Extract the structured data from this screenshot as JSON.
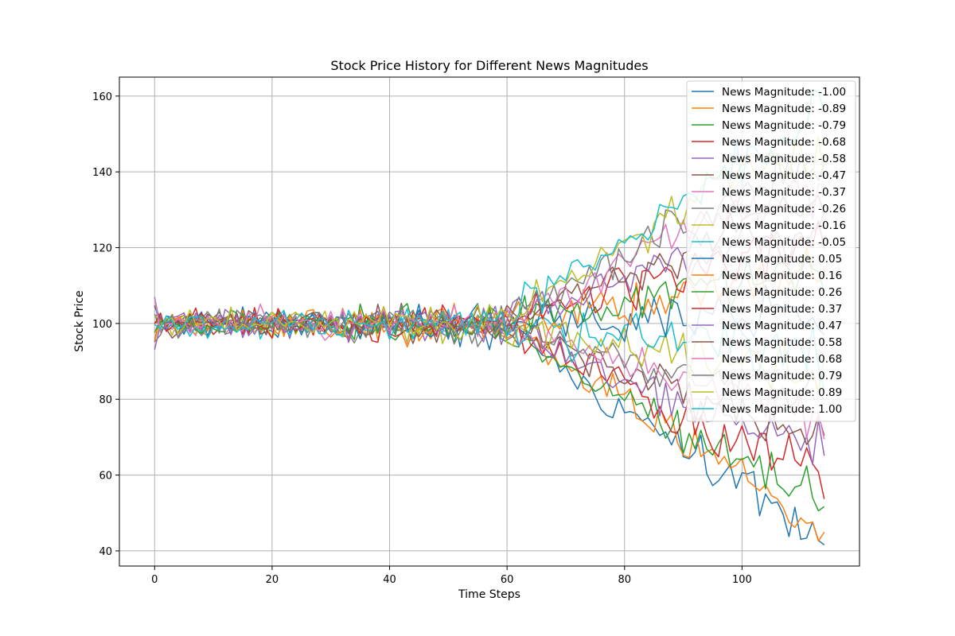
{
  "chart_data": {
    "type": "line",
    "title": "Stock Price History for Different News Magnitudes",
    "xlabel": "Time Steps",
    "ylabel": "Stock Price",
    "xlim": [
      -6,
      120
    ],
    "ylim": [
      36,
      165
    ],
    "xticks": [
      0,
      20,
      40,
      60,
      80,
      100
    ],
    "yticks": [
      40,
      60,
      80,
      100,
      120,
      140,
      160
    ],
    "grid": true,
    "legend_position": "top-right",
    "x_range": [
      0,
      114
    ],
    "series": [
      {
        "name": "News Magnitude: -1.00",
        "color": "#1f77b4",
        "anchors": [
          [
            0,
            100
          ],
          [
            58,
            99
          ],
          [
            65,
            93
          ],
          [
            75,
            82
          ],
          [
            85,
            72
          ],
          [
            95,
            63
          ],
          [
            105,
            54
          ],
          [
            110,
            48
          ],
          [
            114,
            46
          ]
        ]
      },
      {
        "name": "News Magnitude: -0.89",
        "color": "#ff7f0e",
        "anchors": [
          [
            0,
            100
          ],
          [
            58,
            99
          ],
          [
            65,
            94
          ],
          [
            75,
            84
          ],
          [
            85,
            74
          ],
          [
            95,
            64
          ],
          [
            105,
            55
          ],
          [
            110,
            50
          ],
          [
            114,
            44
          ]
        ]
      },
      {
        "name": "News Magnitude: -0.79",
        "color": "#2ca02c",
        "anchors": [
          [
            0,
            100
          ],
          [
            58,
            99
          ],
          [
            65,
            94
          ],
          [
            75,
            85
          ],
          [
            85,
            75
          ],
          [
            95,
            66
          ],
          [
            105,
            59
          ],
          [
            110,
            55
          ],
          [
            114,
            52
          ]
        ]
      },
      {
        "name": "News Magnitude: -0.68",
        "color": "#d62728",
        "anchors": [
          [
            0,
            100
          ],
          [
            58,
            99
          ],
          [
            65,
            95
          ],
          [
            75,
            87
          ],
          [
            85,
            79
          ],
          [
            95,
            71
          ],
          [
            105,
            66
          ],
          [
            110,
            63
          ],
          [
            114,
            62
          ]
        ]
      },
      {
        "name": "News Magnitude: -0.58",
        "color": "#9467bd",
        "anchors": [
          [
            0,
            100
          ],
          [
            58,
            99
          ],
          [
            65,
            96
          ],
          [
            75,
            89
          ],
          [
            85,
            82
          ],
          [
            95,
            76
          ],
          [
            105,
            72
          ],
          [
            110,
            70
          ],
          [
            114,
            68
          ]
        ]
      },
      {
        "name": "News Magnitude: -0.47",
        "color": "#8c564b",
        "anchors": [
          [
            0,
            100
          ],
          [
            58,
            99
          ],
          [
            65,
            96
          ],
          [
            75,
            90
          ],
          [
            85,
            84
          ],
          [
            95,
            78
          ],
          [
            105,
            74
          ],
          [
            110,
            72
          ],
          [
            114,
            68
          ]
        ]
      },
      {
        "name": "News Magnitude: -0.37",
        "color": "#e377c2",
        "anchors": [
          [
            0,
            100
          ],
          [
            58,
            99
          ],
          [
            65,
            97
          ],
          [
            75,
            92
          ],
          [
            85,
            87
          ],
          [
            95,
            82
          ],
          [
            105,
            79
          ],
          [
            110,
            77
          ],
          [
            114,
            75
          ]
        ]
      },
      {
        "name": "News Magnitude: -0.26",
        "color": "#7f7f7f",
        "anchors": [
          [
            0,
            100
          ],
          [
            58,
            99
          ],
          [
            65,
            97
          ],
          [
            75,
            93
          ],
          [
            85,
            89
          ],
          [
            95,
            86
          ],
          [
            105,
            83
          ],
          [
            110,
            81
          ],
          [
            114,
            80
          ]
        ]
      },
      {
        "name": "News Magnitude: -0.16",
        "color": "#bcbd22",
        "anchors": [
          [
            0,
            100
          ],
          [
            58,
            99
          ],
          [
            65,
            98
          ],
          [
            75,
            95
          ],
          [
            85,
            92
          ],
          [
            95,
            90
          ],
          [
            105,
            88
          ],
          [
            110,
            87
          ],
          [
            114,
            86
          ]
        ]
      },
      {
        "name": "News Magnitude: -0.05",
        "color": "#17becf",
        "anchors": [
          [
            0,
            100
          ],
          [
            58,
            99
          ],
          [
            65,
            98
          ],
          [
            75,
            97
          ],
          [
            85,
            96
          ],
          [
            95,
            95
          ],
          [
            105,
            94
          ],
          [
            110,
            93
          ],
          [
            114,
            92
          ]
        ]
      },
      {
        "name": "News Magnitude: 0.05",
        "color": "#1f77b4",
        "anchors": [
          [
            0,
            100
          ],
          [
            58,
            100
          ],
          [
            65,
            100
          ],
          [
            75,
            100
          ],
          [
            85,
            101
          ],
          [
            95,
            101
          ],
          [
            105,
            102
          ],
          [
            110,
            102
          ],
          [
            114,
            101
          ]
        ]
      },
      {
        "name": "News Magnitude: 0.16",
        "color": "#ff7f0e",
        "anchors": [
          [
            0,
            100
          ],
          [
            58,
            100
          ],
          [
            65,
            101
          ],
          [
            75,
            103
          ],
          [
            85,
            106
          ],
          [
            95,
            109
          ],
          [
            105,
            111
          ],
          [
            110,
            112
          ],
          [
            114,
            113
          ]
        ]
      },
      {
        "name": "News Magnitude: 0.26",
        "color": "#2ca02c",
        "anchors": [
          [
            0,
            100
          ],
          [
            58,
            100
          ],
          [
            65,
            102
          ],
          [
            75,
            105
          ],
          [
            85,
            108
          ],
          [
            95,
            111
          ],
          [
            105,
            113
          ],
          [
            110,
            114
          ],
          [
            114,
            115
          ]
        ]
      },
      {
        "name": "News Magnitude: 0.37",
        "color": "#d62728",
        "anchors": [
          [
            0,
            100
          ],
          [
            58,
            100
          ],
          [
            65,
            103
          ],
          [
            75,
            107
          ],
          [
            85,
            111
          ],
          [
            95,
            115
          ],
          [
            105,
            118
          ],
          [
            110,
            120
          ],
          [
            114,
            121
          ]
        ]
      },
      {
        "name": "News Magnitude: 0.47",
        "color": "#9467bd",
        "anchors": [
          [
            0,
            100
          ],
          [
            58,
            100
          ],
          [
            65,
            104
          ],
          [
            75,
            109
          ],
          [
            85,
            115
          ],
          [
            95,
            119
          ],
          [
            105,
            122
          ],
          [
            110,
            124
          ],
          [
            114,
            125
          ]
        ]
      },
      {
        "name": "News Magnitude: 0.58",
        "color": "#8c564b",
        "anchors": [
          [
            0,
            100
          ],
          [
            58,
            100
          ],
          [
            65,
            104
          ],
          [
            75,
            110
          ],
          [
            85,
            116
          ],
          [
            95,
            123
          ],
          [
            105,
            128
          ],
          [
            110,
            131
          ],
          [
            114,
            133
          ]
        ]
      },
      {
        "name": "News Magnitude: 0.68",
        "color": "#e377c2",
        "anchors": [
          [
            0,
            100
          ],
          [
            58,
            100
          ],
          [
            65,
            105
          ],
          [
            75,
            112
          ],
          [
            85,
            120
          ],
          [
            95,
            127
          ],
          [
            105,
            131
          ],
          [
            110,
            134
          ],
          [
            114,
            135
          ]
        ]
      },
      {
        "name": "News Magnitude: 0.79",
        "color": "#7f7f7f",
        "anchors": [
          [
            0,
            100
          ],
          [
            58,
            100
          ],
          [
            65,
            106
          ],
          [
            75,
            114
          ],
          [
            85,
            123
          ],
          [
            95,
            131
          ],
          [
            105,
            137
          ],
          [
            110,
            140
          ],
          [
            114,
            142
          ]
        ]
      },
      {
        "name": "News Magnitude: 0.89",
        "color": "#bcbd22",
        "anchors": [
          [
            0,
            100
          ],
          [
            58,
            100
          ],
          [
            65,
            107
          ],
          [
            75,
            116
          ],
          [
            85,
            126
          ],
          [
            95,
            135
          ],
          [
            105,
            141
          ],
          [
            110,
            145
          ],
          [
            114,
            146
          ]
        ]
      },
      {
        "name": "News Magnitude: 1.00",
        "color": "#17becf",
        "anchors": [
          [
            0,
            100
          ],
          [
            58,
            100
          ],
          [
            65,
            108
          ],
          [
            75,
            118
          ],
          [
            85,
            128
          ],
          [
            95,
            138
          ],
          [
            105,
            147
          ],
          [
            110,
            153
          ],
          [
            114,
            158
          ]
        ]
      }
    ]
  }
}
